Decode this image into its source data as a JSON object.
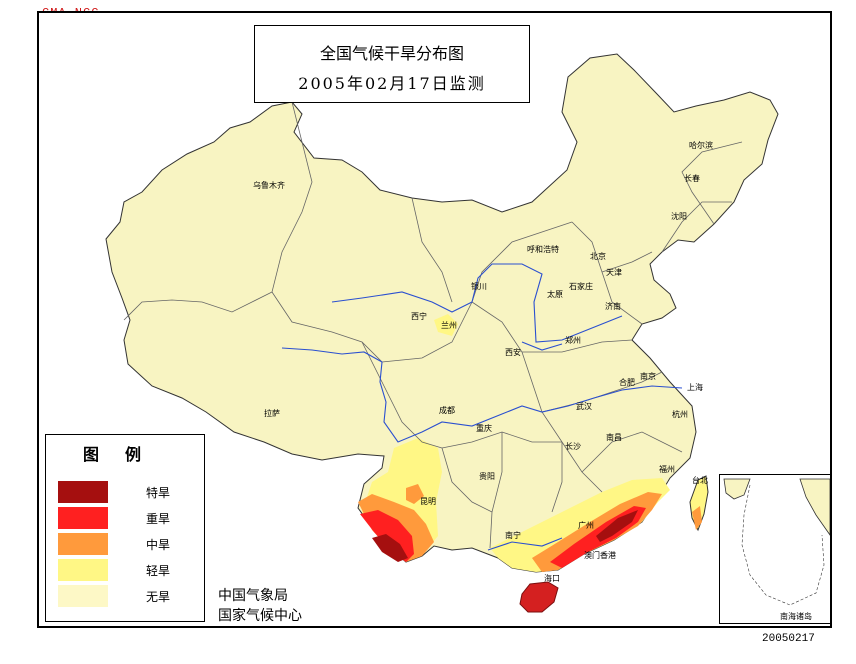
{
  "corner_tag": "CMA NCC",
  "title": {
    "line1": "全国气候干旱分布图",
    "line2": "2005年02月17日监测"
  },
  "legend": {
    "title": "图例",
    "items": [
      {
        "label": "特旱",
        "color": "#a50f0f"
      },
      {
        "label": "重旱",
        "color": "#ff2020"
      },
      {
        "label": "中旱",
        "color": "#ff9a3c"
      },
      {
        "label": "轻旱",
        "color": "#fff785"
      },
      {
        "label": "无旱",
        "color": "#fdf8c6"
      }
    ]
  },
  "org": {
    "line1": "中国气象局",
    "line2": "国家气候中心"
  },
  "inset_label": "南海诸岛",
  "footer_date": "20050217",
  "colors": {
    "land": "#f8f4c2",
    "river": "#2a4fd0",
    "border": "#555555"
  },
  "cities": [
    {
      "name": "乌鲁木齐",
      "label": "乌鲁木齐"
    },
    {
      "name": "哈尔滨",
      "label": "哈尔滨"
    },
    {
      "name": "长春",
      "label": "长春"
    },
    {
      "name": "沈阳",
      "label": "沈阳"
    },
    {
      "name": "呼和浩特",
      "label": "呼和浩特"
    },
    {
      "name": "北京",
      "label": "北京"
    },
    {
      "name": "天津",
      "label": "天津"
    },
    {
      "name": "银川",
      "label": "银川"
    },
    {
      "name": "太原",
      "label": "太原"
    },
    {
      "name": "石家庄",
      "label": "石家庄"
    },
    {
      "name": "济南",
      "label": "济南"
    },
    {
      "name": "西宁",
      "label": "西宁"
    },
    {
      "name": "兰州",
      "label": "兰州"
    },
    {
      "name": "西安",
      "label": "西安"
    },
    {
      "name": "郑州",
      "label": "郑州"
    },
    {
      "name": "合肥",
      "label": "合肥"
    },
    {
      "name": "南京",
      "label": "南京"
    },
    {
      "name": "上海",
      "label": "上海"
    },
    {
      "name": "拉萨",
      "label": "拉萨"
    },
    {
      "name": "成都",
      "label": "成都"
    },
    {
      "name": "重庆",
      "label": "重庆"
    },
    {
      "name": "武汉",
      "label": "武汉"
    },
    {
      "name": "杭州",
      "label": "杭州"
    },
    {
      "name": "长沙",
      "label": "长沙"
    },
    {
      "name": "南昌",
      "label": "南昌"
    },
    {
      "name": "福州",
      "label": "福州"
    },
    {
      "name": "贵阳",
      "label": "贵阳"
    },
    {
      "name": "昆明",
      "label": "昆明"
    },
    {
      "name": "台北",
      "label": "台北"
    },
    {
      "name": "南宁",
      "label": "南宁"
    },
    {
      "name": "广州",
      "label": "广州"
    },
    {
      "name": "澳门香港",
      "label": "澳门香港"
    },
    {
      "name": "海口",
      "label": "海口"
    }
  ]
}
